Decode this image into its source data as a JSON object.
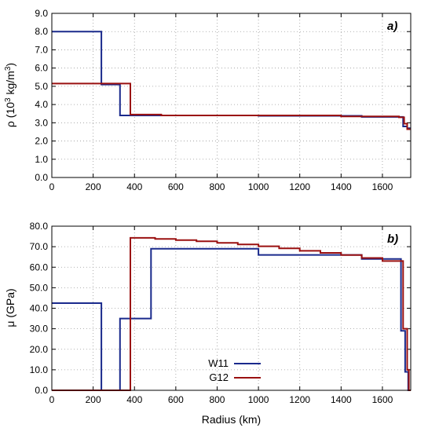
{
  "chart_data": [
    {
      "type": "line",
      "step": true,
      "panel_label": "a)",
      "ylabel": "ρ (10",
      "ylabel_sup": "3",
      "ylabel_rest": " kg/m",
      "ylabel_sup2": "3",
      "ylabel_end": ")",
      "xlabel": "",
      "xlim": [
        0,
        1737
      ],
      "ylim": [
        0,
        9
      ],
      "xticks": [
        "0",
        "200",
        "400",
        "600",
        "800",
        "1000",
        "1200",
        "1400",
        "1600"
      ],
      "yticks": [
        "0.0",
        "1.0",
        "2.0",
        "3.0",
        "4.0",
        "5.0",
        "6.0",
        "7.0",
        "8.0",
        "9.0"
      ],
      "grid": true,
      "series": [
        {
          "name": "W11",
          "color": "#1a2a8c",
          "x": [
            0,
            240,
            240,
            330,
            330,
            1000,
            1000,
            1500,
            1500,
            1700,
            1700,
            1720,
            1720,
            1737
          ],
          "y": [
            8.0,
            8.0,
            5.1,
            5.1,
            3.4,
            3.4,
            3.38,
            3.38,
            3.32,
            3.32,
            2.8,
            2.8,
            2.7,
            2.7
          ]
        },
        {
          "name": "G12",
          "color": "#9a1010",
          "x": [
            0,
            380,
            380,
            530,
            530,
            1400,
            1400,
            1680,
            1680,
            1705,
            1705,
            1720,
            1720,
            1737
          ],
          "y": [
            5.15,
            5.15,
            3.45,
            3.45,
            3.4,
            3.4,
            3.35,
            3.35,
            3.3,
            3.3,
            2.95,
            2.95,
            2.65,
            2.65
          ]
        }
      ]
    },
    {
      "type": "line",
      "step": true,
      "panel_label": "b)",
      "ylabel": "μ (GPa)",
      "xlabel": "Radius (km)",
      "xlim": [
        0,
        1737
      ],
      "ylim": [
        0,
        80
      ],
      "xticks": [
        "0",
        "200",
        "400",
        "600",
        "800",
        "1000",
        "1200",
        "1400",
        "1600"
      ],
      "yticks": [
        "0.0",
        "10.0",
        "20.0",
        "30.0",
        "40.0",
        "50.0",
        "60.0",
        "70.0",
        "80.0"
      ],
      "grid": true,
      "legend_position": "bottom-center",
      "series": [
        {
          "name": "W11",
          "color": "#1a2a8c",
          "x": [
            0,
            240,
            240,
            330,
            330,
            480,
            480,
            1000,
            1000,
            1500,
            1500,
            1690,
            1690,
            1710,
            1710,
            1725,
            1725,
            1737
          ],
          "y": [
            42.5,
            42.5,
            0,
            0,
            35,
            35,
            69,
            69,
            66,
            66,
            64,
            64,
            29,
            29,
            9,
            9,
            0,
            0
          ]
        },
        {
          "name": "G12",
          "color": "#9a1010",
          "x": [
            0,
            380,
            380,
            500,
            500,
            600,
            600,
            700,
            700,
            800,
            800,
            900,
            900,
            1000,
            1000,
            1100,
            1100,
            1200,
            1200,
            1300,
            1300,
            1400,
            1400,
            1500,
            1500,
            1600,
            1600,
            1700,
            1700,
            1720,
            1720,
            1728,
            1728,
            1737
          ],
          "y": [
            0,
            0,
            74.3,
            74.3,
            73.8,
            73.8,
            73.2,
            73.2,
            72.6,
            72.6,
            71.9,
            71.9,
            71.1,
            71.1,
            70.2,
            70.2,
            69.2,
            69.2,
            68.0,
            68.0,
            67.0,
            67.0,
            65.9,
            65.9,
            64.5,
            64.5,
            63.0,
            63.0,
            30,
            30,
            10,
            10,
            0,
            0
          ]
        }
      ]
    }
  ]
}
